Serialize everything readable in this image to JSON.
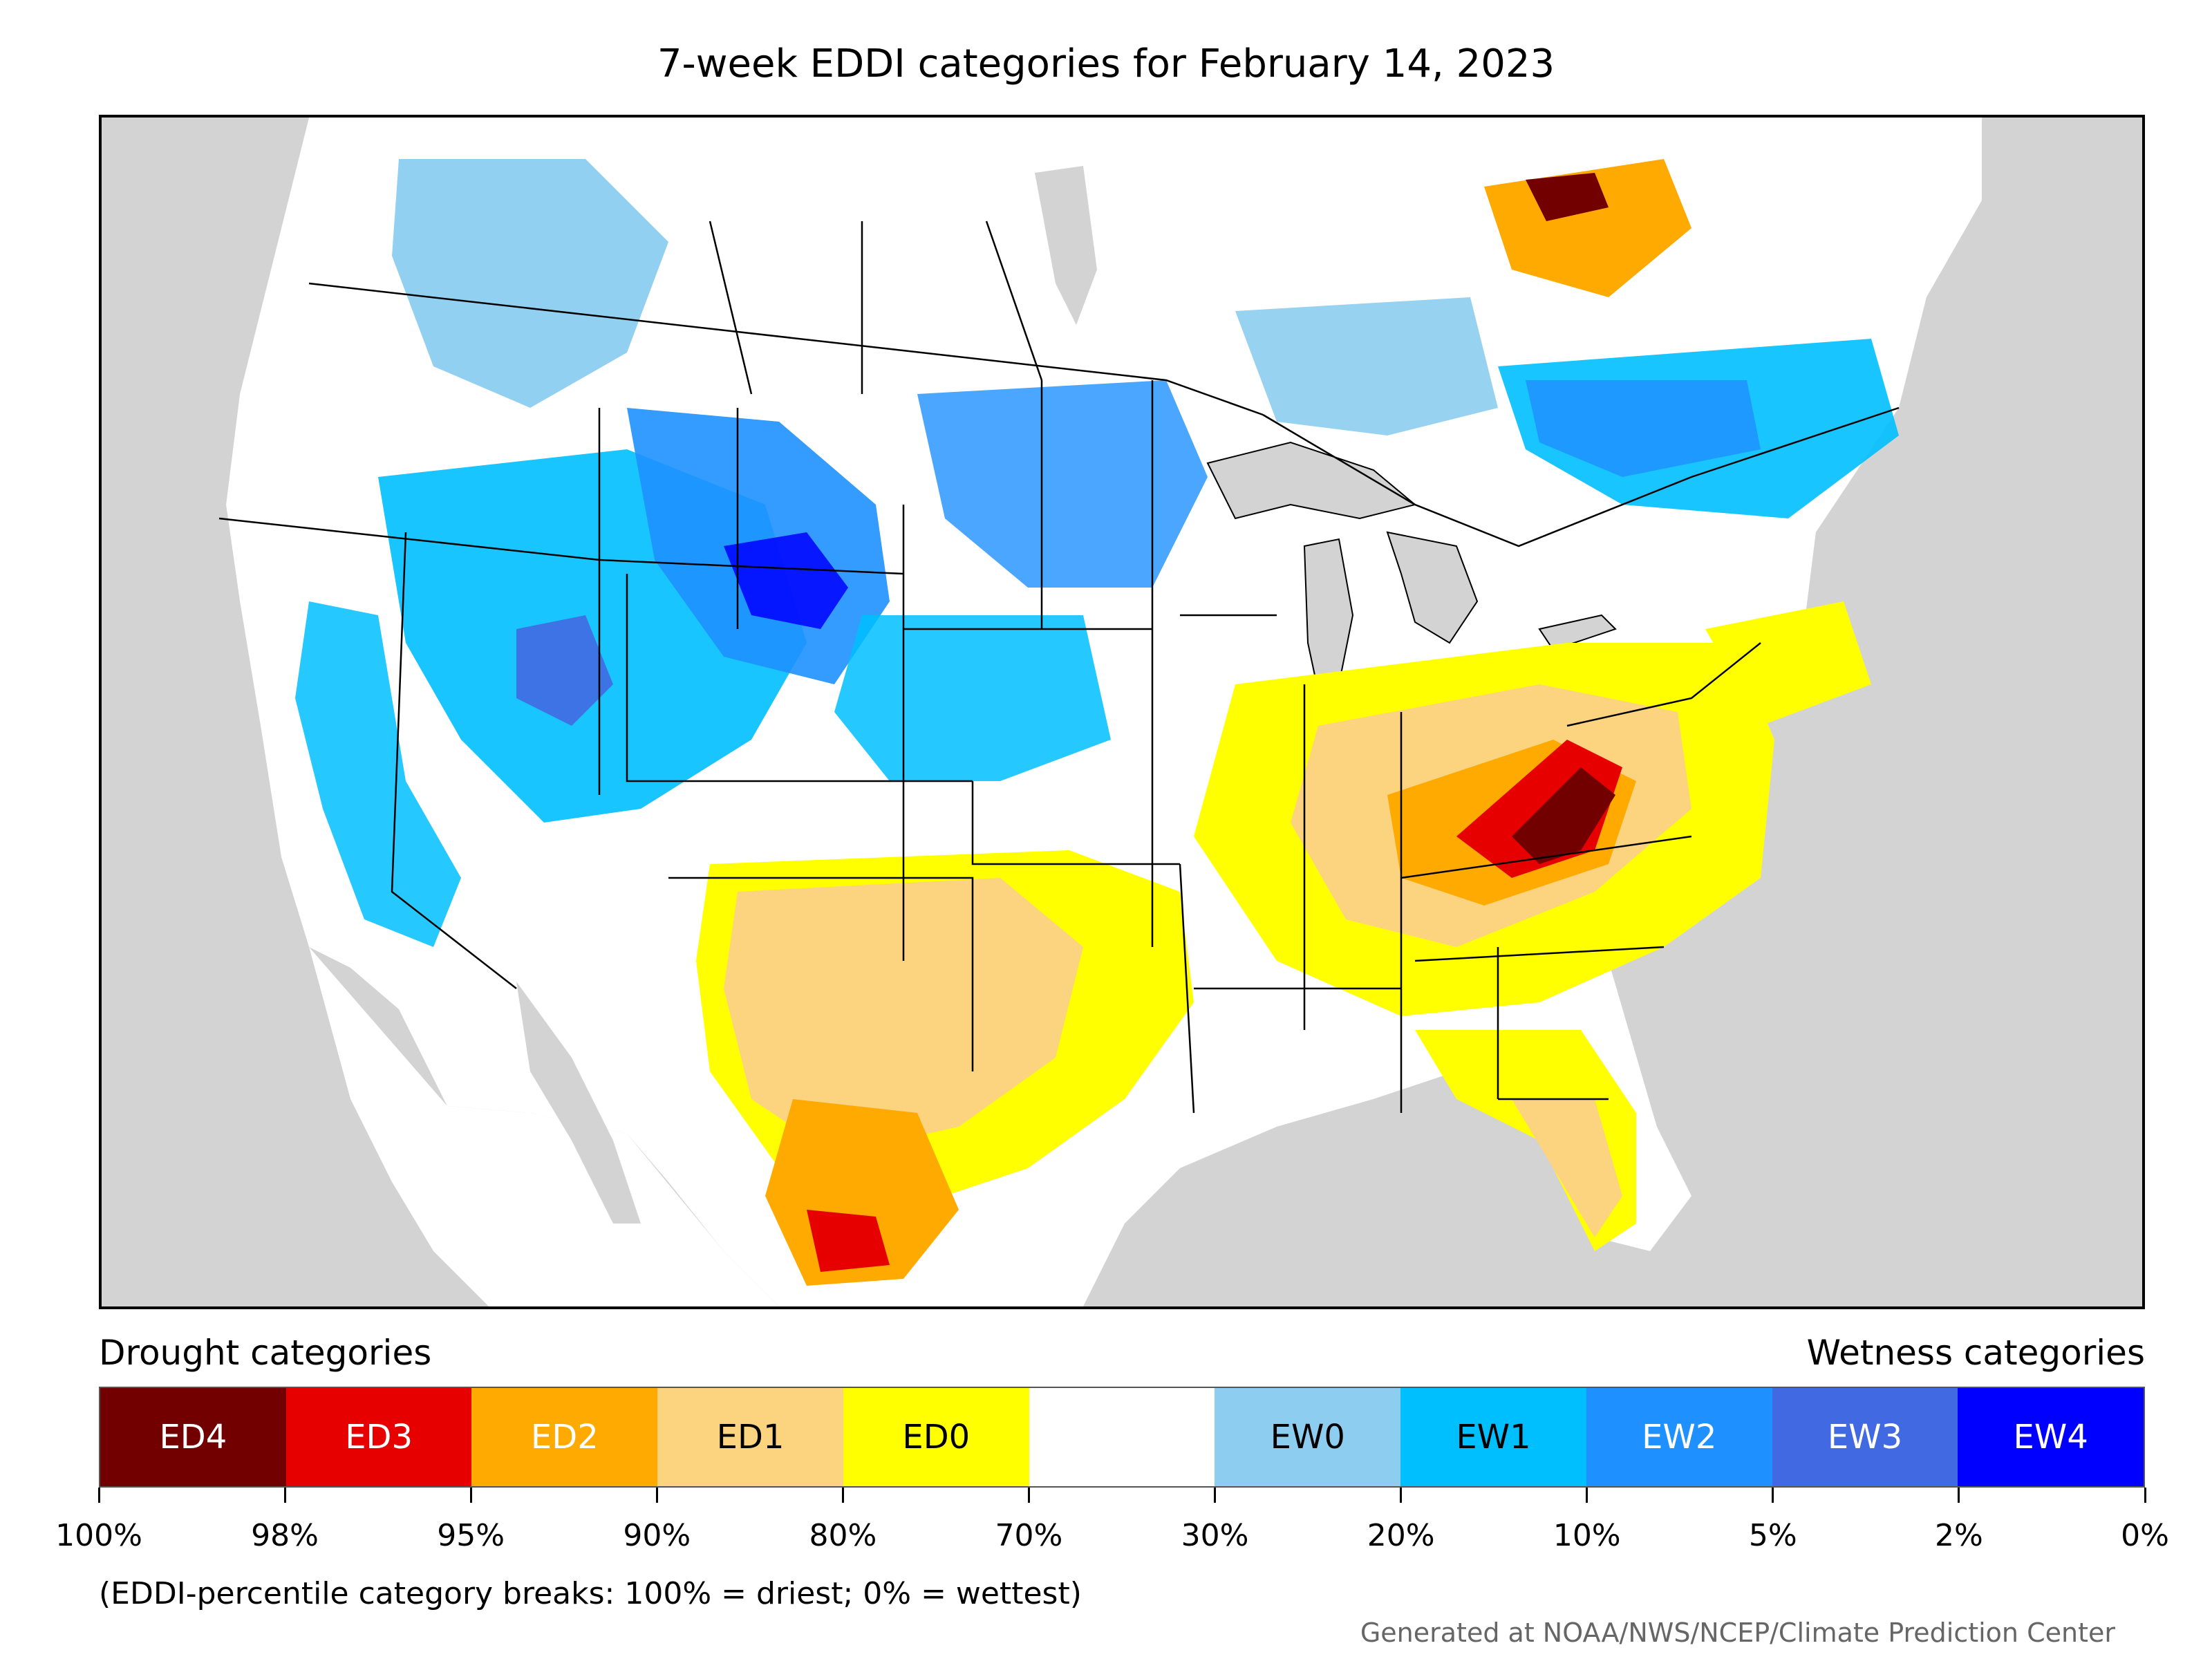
{
  "title": "7-week EDDI categories for February 14, 2023",
  "legend": {
    "drought_heading": "Drought categories",
    "wetness_heading": "Wetness categories",
    "categories": [
      {
        "label": "ED4",
        "color": "#730000",
        "text": "light"
      },
      {
        "label": "ED3",
        "color": "#e60000",
        "text": "light"
      },
      {
        "label": "ED2",
        "color": "#ffaa00",
        "text": "light"
      },
      {
        "label": "ED1",
        "color": "#fcd37f",
        "text": "dark"
      },
      {
        "label": "ED0",
        "color": "#ffff00",
        "text": "dark"
      },
      {
        "label": "",
        "color": "#ffffff",
        "text": "dark"
      },
      {
        "label": "EW0",
        "color": "#8ccdf0",
        "text": "dark"
      },
      {
        "label": "EW1",
        "color": "#00bfff",
        "text": "dark"
      },
      {
        "label": "EW2",
        "color": "#1e90ff",
        "text": "light"
      },
      {
        "label": "EW3",
        "color": "#4169e1",
        "text": "light"
      },
      {
        "label": "EW4",
        "color": "#0000ff",
        "text": "light"
      }
    ],
    "ticks": [
      "100%",
      "98%",
      "95%",
      "90%",
      "80%",
      "70%",
      "30%",
      "20%",
      "10%",
      "5%",
      "2%",
      "0%"
    ]
  },
  "footnote": "(EDDI-percentile category breaks: 100% = driest; 0% = wettest)",
  "credit": "Generated at NOAA/NWS/NCEP/Climate Prediction Center",
  "map_colors": {
    "background": "#d3d3d3",
    "land": "#ffffff",
    "water": "#d3d3d3",
    "borders": "#000000"
  }
}
